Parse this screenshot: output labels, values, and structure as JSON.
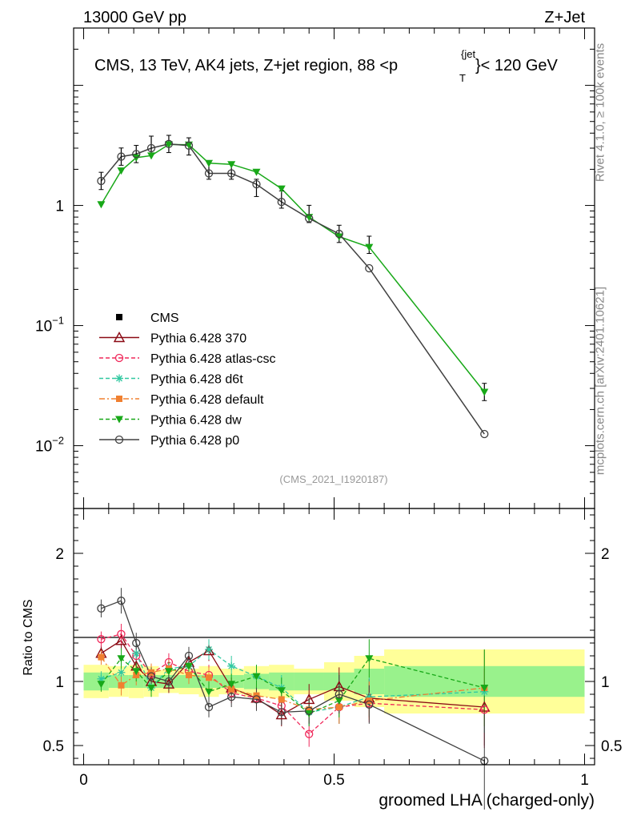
{
  "header": {
    "left": "13000 GeV pp",
    "right": "Z+Jet",
    "plot_title": "CMS, 13 TeV, AK4 jets, Z+jet region, 88 <",
    "plot_title_var": "p",
    "plot_title_sup": "{jet",
    "plot_title_sub": "T",
    "plot_title_tail": "}< 120 GeV",
    "analysis_id": "(CMS_2021_I1920187)"
  },
  "side": {
    "rivet": "Rivet 4.1.0, ≥ 100k events",
    "mcplots": "mcplots.cern.ch [arXiv:2401.10621]"
  },
  "colors": {
    "p370": "#8b0a14",
    "atlas": "#f0285a",
    "d6t": "#30c8a0",
    "default": "#f08030",
    "dw": "#18a818",
    "p0": "#404040",
    "band_inner": "#99f28c",
    "band_outer": "#ffff99"
  },
  "chart_data": [
    {
      "type": "line",
      "panel": "main",
      "yscale": "log",
      "xlim": [
        -0.02,
        1.02
      ],
      "ylim": [
        0.003,
        30
      ],
      "y_tick_labels": [
        {
          "value": 1,
          "label": "1"
        },
        {
          "value": 0.1,
          "label": "10",
          "exp": "−1"
        },
        {
          "value": 0.01,
          "label": "10",
          "exp": "−2"
        }
      ],
      "x": [
        0.035,
        0.075,
        0.105,
        0.135,
        0.17,
        0.21,
        0.25,
        0.295,
        0.345,
        0.395,
        0.45,
        0.51,
        0.57,
        0.8
      ],
      "cms": [
        1.6,
        2.55,
        2.68,
        3.2,
        3.25,
        3.1,
        1.95,
        1.95,
        1.4,
        1.12,
        0.85,
        0.58,
        0.47,
        0.028
      ],
      "series": [
        {
          "name": "Pythia 6.428 dw",
          "key": "dw",
          "marker": "triangle-down",
          "values": [
            1.02,
            1.95,
            2.5,
            2.6,
            3.22,
            3.2,
            2.25,
            2.2,
            1.9,
            1.38,
            0.8,
            0.55,
            0.45,
            0.028
          ]
        },
        {
          "name": "Pythia 6.428 p0",
          "key": "p0",
          "marker": "circle-open",
          "values": [
            1.6,
            2.55,
            2.68,
            3.0,
            3.25,
            3.15,
            1.85,
            1.85,
            1.5,
            1.07,
            0.78,
            0.58,
            0.3,
            0.0125
          ]
        }
      ],
      "legend": [
        {
          "name": "CMS",
          "key": "cms",
          "marker": "square",
          "style": "none"
        },
        {
          "name": "Pythia 6.428 370",
          "key": "p370",
          "marker": "triangle-open",
          "style": "solid"
        },
        {
          "name": "Pythia 6.428 atlas-csc",
          "key": "atlas",
          "marker": "circle-open",
          "style": "dashed"
        },
        {
          "name": "Pythia 6.428 d6t",
          "key": "d6t",
          "marker": "star",
          "style": "dashed"
        },
        {
          "name": "Pythia 6.428 default",
          "key": "default",
          "marker": "square",
          "style": "dashdot"
        },
        {
          "name": "Pythia 6.428 dw",
          "key": "dw",
          "marker": "triangle-down",
          "style": "dashed"
        },
        {
          "name": "Pythia 6.428 p0",
          "key": "p0",
          "marker": "circle-open",
          "style": "solid"
        }
      ]
    },
    {
      "type": "line",
      "panel": "ratio",
      "ylabel": "Ratio to CMS",
      "xlabel": "groomed LHA (charged-only)",
      "xlim": [
        -0.02,
        1.02
      ],
      "ylim": [
        0.35,
        2.35
      ],
      "y_tick_labels": [
        {
          "value": 2,
          "label": "2"
        },
        {
          "value": 1,
          "label": "1"
        },
        {
          "value": 0.5,
          "label": "0.5"
        }
      ],
      "x_tick_labels": [
        {
          "value": 0,
          "label": "0"
        },
        {
          "value": 0.5,
          "label": "0.5"
        },
        {
          "value": 1,
          "label": "1"
        }
      ],
      "bands": {
        "edges": [
          0.0,
          0.05,
          0.09,
          0.12,
          0.15,
          0.19,
          0.23,
          0.27,
          0.32,
          0.37,
          0.42,
          0.48,
          0.54,
          0.6,
          1.0
        ],
        "inner": [
          0.07,
          0.05,
          0.05,
          0.05,
          0.05,
          0.05,
          0.05,
          0.05,
          0.06,
          0.07,
          0.07,
          0.07,
          0.1,
          0.12
        ],
        "outer": [
          0.13,
          0.12,
          0.13,
          0.12,
          0.09,
          0.1,
          0.12,
          0.1,
          0.12,
          0.13,
          0.1,
          0.15,
          0.2,
          0.25
        ]
      },
      "x": [
        0.035,
        0.075,
        0.105,
        0.135,
        0.17,
        0.21,
        0.25,
        0.295,
        0.345,
        0.395,
        0.45,
        0.51,
        0.57,
        0.8
      ],
      "series": [
        {
          "name": "Pythia 6.428 370",
          "key": "p370",
          "marker": "triangle-open",
          "style": "solid",
          "values": [
            1.22,
            1.32,
            1.12,
            1.0,
            0.98,
            1.15,
            1.24,
            0.95,
            0.87,
            0.74,
            0.86,
            0.96,
            0.87,
            0.8
          ],
          "errors": [
            0.06,
            0.08,
            0.07,
            0.07,
            0.07,
            0.07,
            0.08,
            0.08,
            0.09,
            0.09,
            0.12,
            0.15,
            0.15,
            0.3
          ]
        },
        {
          "name": "Pythia 6.428 atlas-csc",
          "key": "atlas",
          "marker": "circle-open",
          "style": "dashed",
          "values": [
            1.33,
            1.37,
            1.2,
            1.06,
            1.15,
            1.08,
            1.05,
            0.91,
            0.87,
            0.81,
            0.59,
            0.8,
            0.83,
            0.78
          ],
          "errors": [
            0.06,
            0.08,
            0.08,
            0.07,
            0.07,
            0.07,
            0.08,
            0.08,
            0.09,
            0.1,
            0.1,
            0.13,
            0.15,
            0.3
          ]
        },
        {
          "name": "Pythia 6.428 d6t",
          "key": "d6t",
          "marker": "star",
          "style": "dashed",
          "values": [
            1.02,
            1.07,
            1.22,
            0.95,
            1.1,
            1.12,
            1.25,
            1.12,
            1.04,
            0.95,
            0.76,
            0.8,
            0.88,
            0.92
          ],
          "errors": [
            0.06,
            0.08,
            0.08,
            0.07,
            0.07,
            0.07,
            0.08,
            0.08,
            0.09,
            0.1,
            0.1,
            0.13,
            0.15,
            0.32
          ]
        },
        {
          "name": "Pythia 6.428 default",
          "key": "default",
          "marker": "square",
          "style": "dashdot",
          "values": [
            1.19,
            0.97,
            1.05,
            1.07,
            1.1,
            1.05,
            1.03,
            0.94,
            0.89,
            0.86,
            0.78,
            0.8,
            0.85,
            0.95
          ],
          "errors": [
            0.06,
            0.08,
            0.08,
            0.07,
            0.07,
            0.07,
            0.08,
            0.08,
            0.09,
            0.1,
            0.1,
            0.13,
            0.15,
            0.3
          ]
        },
        {
          "name": "Pythia 6.428 dw",
          "key": "dw",
          "marker": "triangle-down",
          "style": "dashed",
          "values": [
            0.98,
            1.18,
            1.08,
            0.95,
            1.08,
            1.12,
            0.92,
            0.98,
            1.04,
            0.93,
            0.75,
            0.85,
            1.18,
            0.95
          ],
          "errors": [
            0.06,
            0.08,
            0.08,
            0.07,
            0.07,
            0.07,
            0.08,
            0.08,
            0.09,
            0.1,
            0.1,
            0.13,
            0.15,
            0.3
          ]
        },
        {
          "name": "Pythia 6.428 p0",
          "key": "p0",
          "marker": "circle-open",
          "style": "solid",
          "values": [
            1.57,
            1.63,
            1.3,
            1.04,
            1.0,
            1.2,
            0.8,
            0.88,
            0.86,
            0.76,
            0.77,
            0.9,
            0.82,
            0.38
          ],
          "errors": [
            0.07,
            0.1,
            0.08,
            0.07,
            0.07,
            0.07,
            0.08,
            0.08,
            0.09,
            0.1,
            0.1,
            0.15,
            0.15,
            0.38
          ]
        }
      ]
    }
  ]
}
